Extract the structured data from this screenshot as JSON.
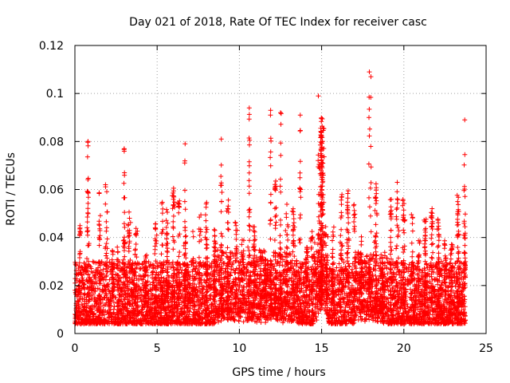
{
  "chart_data": {
    "type": "scatter",
    "title": "Day 021 of 2018, Rate Of TEC Index for receiver casc",
    "xlabel": "GPS time / hours",
    "ylabel": "ROTI / TECUs",
    "xlim": [
      0,
      25
    ],
    "ylim": [
      0,
      0.12
    ],
    "xticks": [
      0,
      5,
      10,
      15,
      20,
      25
    ],
    "yticks": [
      0,
      0.02,
      0.04,
      0.06,
      0.08,
      0.1,
      0.12
    ],
    "xtick_labels": [
      "0",
      "5",
      "10",
      "15",
      "20",
      "25"
    ],
    "ytick_labels": [
      "0",
      "0.02",
      "0.04",
      "0.06",
      "0.08",
      "0.1",
      "0.12"
    ],
    "grid": true,
    "marker": "+",
    "color": "#ff0000",
    "series": [
      {
        "name": "ROTI",
        "x_range": [
          0,
          23.75
        ],
        "description_values": {
          "typical_band": [
            0.003,
            0.035
          ],
          "notable_peaks": [
            {
              "x": 0.8,
              "y": 0.08
            },
            {
              "x": 3.0,
              "y": 0.077
            },
            {
              "x": 6.7,
              "y": 0.079
            },
            {
              "x": 8.9,
              "y": 0.081
            },
            {
              "x": 10.6,
              "y": 0.094
            },
            {
              "x": 11.9,
              "y": 0.093
            },
            {
              "x": 12.5,
              "y": 0.092
            },
            {
              "x": 13.7,
              "y": 0.091
            },
            {
              "x": 14.8,
              "y": 0.099
            },
            {
              "x": 17.9,
              "y": 0.109
            },
            {
              "x": 18.0,
              "y": 0.107
            },
            {
              "x": 23.7,
              "y": 0.089
            }
          ]
        }
      }
    ]
  }
}
